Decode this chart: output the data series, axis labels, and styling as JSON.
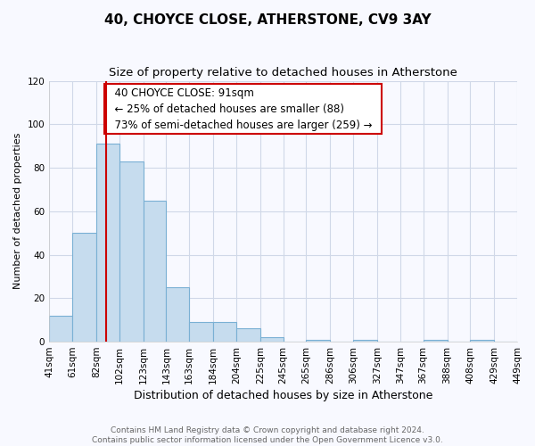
{
  "title": "40, CHOYCE CLOSE, ATHERSTONE, CV9 3AY",
  "subtitle": "Size of property relative to detached houses in Atherstone",
  "xlabel": "Distribution of detached houses by size in Atherstone",
  "ylabel": "Number of detached properties",
  "bin_edges": [
    41,
    61,
    82,
    102,
    123,
    143,
    163,
    184,
    204,
    225,
    245,
    265,
    286,
    306,
    327,
    347,
    367,
    388,
    408,
    429,
    449
  ],
  "bar_heights": [
    12,
    50,
    91,
    83,
    65,
    25,
    9,
    9,
    6,
    2,
    0,
    1,
    0,
    1,
    0,
    0,
    1,
    0,
    1,
    0
  ],
  "bar_color": "#c6dcee",
  "bar_edge_color": "#7ab0d4",
  "property_line_x": 91,
  "property_line_color": "#cc0000",
  "annotation_text": "  40 CHOYCE CLOSE: 91sqm  \n  ← 25% of detached houses are smaller (88)  \n  73% of semi-detached houses are larger (259) →  ",
  "annotation_box_color": "#ffffff",
  "annotation_box_edge_color": "#cc0000",
  "ylim": [
    0,
    120
  ],
  "yticks": [
    0,
    20,
    40,
    60,
    80,
    100,
    120
  ],
  "background_color": "#f8f9ff",
  "grid_color": "#d0d8e8",
  "footer_text": "Contains HM Land Registry data © Crown copyright and database right 2024.\nContains public sector information licensed under the Open Government Licence v3.0.",
  "title_fontsize": 11,
  "subtitle_fontsize": 9.5,
  "xlabel_fontsize": 9,
  "ylabel_fontsize": 8,
  "tick_fontsize": 7.5,
  "annotation_fontsize": 8.5,
  "footer_fontsize": 6.5
}
